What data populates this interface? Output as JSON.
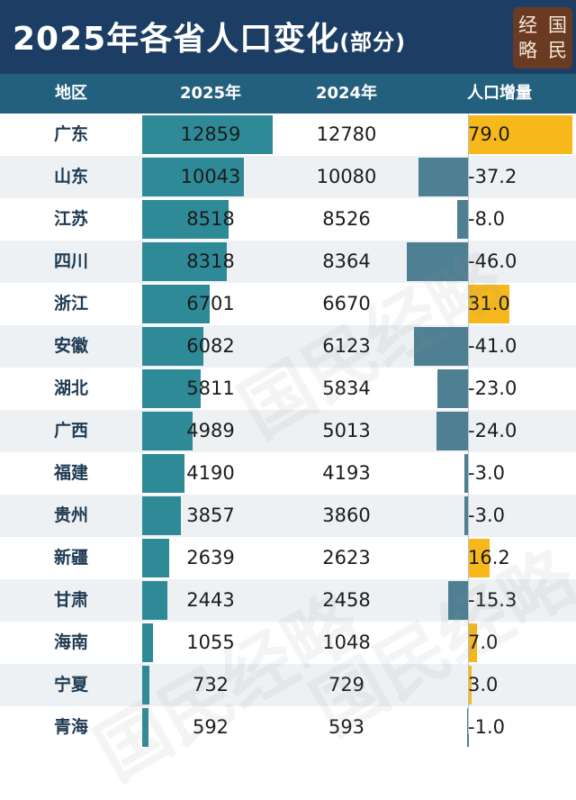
{
  "header": {
    "title": "2025年各省人口变化",
    "title_suffix": "(部分)",
    "logo_chars": [
      "经",
      "国",
      "略",
      "民"
    ]
  },
  "columns": {
    "region": "地区",
    "y2025": "2025年",
    "y2024": "2024年",
    "change": "人口增量"
  },
  "watermark": "国民经略",
  "colors": {
    "header_bg": "#1c3e64",
    "column_header_bg": "#23607e",
    "bar_2025": "#2f8a97",
    "increase": "#f6b81a",
    "decrease": "#4e7f92"
  },
  "chart_data": {
    "type": "table",
    "title": "2025年各省人口变化(部分)",
    "columns": [
      "地区",
      "2025年",
      "2024年",
      "人口增量"
    ],
    "rows": [
      {
        "region": "广东",
        "y2025": "12859",
        "y2024": "12780",
        "change": "79.0"
      },
      {
        "region": "山东",
        "y2025": "10043",
        "y2024": "10080",
        "change": "-37.2"
      },
      {
        "region": "江苏",
        "y2025": "8518",
        "y2024": "8526",
        "change": "-8.0"
      },
      {
        "region": "四川",
        "y2025": "8318",
        "y2024": "8364",
        "change": "-46.0"
      },
      {
        "region": "浙江",
        "y2025": "6701",
        "y2024": "6670",
        "change": "31.0"
      },
      {
        "region": "安徽",
        "y2025": "6082",
        "y2024": "6123",
        "change": "-41.0"
      },
      {
        "region": "湖北",
        "y2025": "5811",
        "y2024": "5834",
        "change": "-23.0"
      },
      {
        "region": "广西",
        "y2025": "4989",
        "y2024": "5013",
        "change": "-24.0"
      },
      {
        "region": "福建",
        "y2025": "4190",
        "y2024": "4193",
        "change": "-3.0"
      },
      {
        "region": "贵州",
        "y2025": "3857",
        "y2024": "3860",
        "change": "-3.0"
      },
      {
        "region": "新疆",
        "y2025": "2639",
        "y2024": "2623",
        "change": "16.2"
      },
      {
        "region": "甘肃",
        "y2025": "2443",
        "y2024": "2458",
        "change": "-15.3"
      },
      {
        "region": "海南",
        "y2025": "1055",
        "y2024": "1048",
        "change": "7.0"
      },
      {
        "region": "宁夏",
        "y2025": "732",
        "y2024": "729",
        "change": "3.0"
      },
      {
        "region": "青海",
        "y2025": "592",
        "y2024": "593",
        "change": "-1.0"
      }
    ]
  }
}
